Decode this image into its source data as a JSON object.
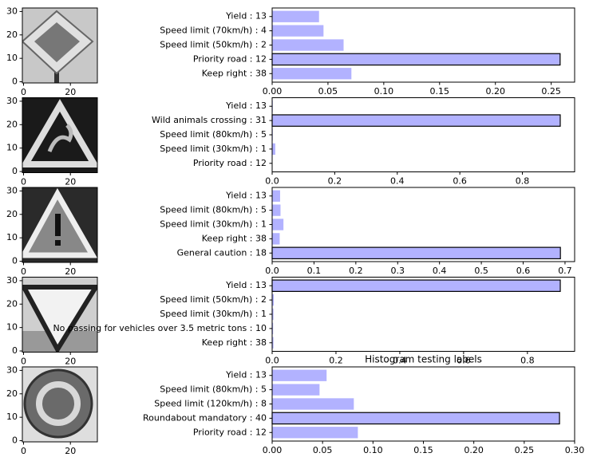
{
  "chart_data": [
    {
      "type": "image",
      "xlim": [
        -0.5,
        31.5
      ],
      "ylim": [
        31.5,
        -0.5
      ],
      "xticks": [
        0,
        20
      ],
      "yticks": [
        0,
        10,
        20,
        30
      ]
    },
    {
      "type": "bar",
      "categories": [
        "Yield : 13",
        "Speed limit (70km/h) : 4",
        "Speed limit (50km/h) : 2",
        "Priority road : 12",
        "Keep right : 38"
      ],
      "values": [
        0.042,
        0.046,
        0.064,
        0.258,
        0.071
      ],
      "color": "#b2b2ff",
      "edgecolors": [
        "none",
        "none",
        "none",
        "#000000",
        "none"
      ],
      "xlim": [
        0,
        0.271
      ],
      "xticks": [
        {
          "value": 0,
          "label": "0.00"
        },
        0.05,
        {
          "value": 0.1,
          "label": "0.10"
        },
        0.15,
        {
          "value": 0.2,
          "label": "0.20"
        },
        0.25
      ]
    },
    {
      "type": "image",
      "xlim": [
        -0.5,
        31.5
      ],
      "ylim": [
        31.5,
        -0.5
      ],
      "xticks": [
        0,
        20
      ],
      "yticks": [
        0,
        10,
        20,
        30
      ]
    },
    {
      "type": "bar",
      "categories": [
        "Yield : 13",
        "Wild animals crossing : 31",
        "Speed limit (80km/h) : 5",
        "Speed limit (30km/h) : 1",
        "Priority road : 12"
      ],
      "values": [
        0.002,
        0.921,
        0.002,
        0.01,
        0.001
      ],
      "color": "#b2b2ff",
      "edgecolors": [
        "none",
        "#000000",
        "none",
        "none",
        "none"
      ],
      "xlim": [
        0,
        0.967
      ],
      "xticks": [
        {
          "value": 0,
          "label": "0.0"
        },
        0.2,
        0.4,
        0.6,
        0.8
      ]
    },
    {
      "type": "image",
      "xlim": [
        -0.5,
        31.5
      ],
      "ylim": [
        31.5,
        -0.5
      ],
      "xticks": [
        0,
        20
      ],
      "yticks": [
        0,
        10,
        20,
        30
      ]
    },
    {
      "type": "bar",
      "categories": [
        "Yield : 13",
        "Speed limit (80km/h) : 5",
        "Speed limit (30km/h) : 1",
        "Keep right : 38",
        "General caution : 18"
      ],
      "values": [
        0.019,
        0.02,
        0.027,
        0.018,
        0.689
      ],
      "color": "#b2b2ff",
      "edgecolors": [
        "none",
        "none",
        "none",
        "none",
        "#000000"
      ],
      "xlim": [
        0,
        0.723
      ],
      "xticks": [
        {
          "value": 0,
          "label": "0.0"
        },
        0.1,
        0.2,
        0.3,
        0.4,
        0.5,
        0.6,
        0.7
      ]
    },
    {
      "type": "image",
      "xlim": [
        -0.5,
        31.5
      ],
      "ylim": [
        31.5,
        -0.5
      ],
      "xticks": [
        0,
        20
      ],
      "yticks": [
        0,
        10,
        20,
        30
      ]
    },
    {
      "type": "bar",
      "categories": [
        "Yield : 13",
        "Speed limit (50km/h) : 2",
        "Speed limit (30km/h) : 1",
        "No passing for vehicles over 3.5 metric tons : 10",
        "Keep right : 38"
      ],
      "values": [
        0.903,
        0.005,
        0.004,
        0.003,
        0.004
      ],
      "color": "#b2b2ff",
      "edgecolors": [
        "#000000",
        "none",
        "none",
        "none",
        "none"
      ],
      "xlim": [
        0,
        0.948
      ],
      "xticks": [
        {
          "value": 0,
          "label": "0.0"
        },
        0.2,
        0.4,
        0.6,
        0.8
      ]
    },
    {
      "type": "image",
      "xlim": [
        -0.5,
        31.5
      ],
      "ylim": [
        31.5,
        -0.5
      ],
      "xticks": [
        0,
        20
      ],
      "yticks": [
        0,
        10,
        20,
        30
      ]
    },
    {
      "type": "bar",
      "title": "Histogram testing labels",
      "categories": [
        "Yield : 13",
        "Speed limit (80km/h) : 5",
        "Speed limit (120km/h) : 8",
        "Roundabout mandatory : 40",
        "Priority road : 12"
      ],
      "values": [
        0.054,
        0.047,
        0.081,
        0.285,
        0.085
      ],
      "color": "#b2b2ff",
      "edgecolors": [
        "none",
        "none",
        "none",
        "#000000",
        "none"
      ],
      "xlim": [
        0,
        0.3
      ],
      "xticks": [
        {
          "value": 0,
          "label": "0.00"
        },
        0.05,
        {
          "value": 0.1,
          "label": "0.10"
        },
        0.15,
        {
          "value": 0.2,
          "label": "0.20"
        },
        0.25,
        {
          "value": 0.3,
          "label": "0.30"
        }
      ]
    }
  ]
}
